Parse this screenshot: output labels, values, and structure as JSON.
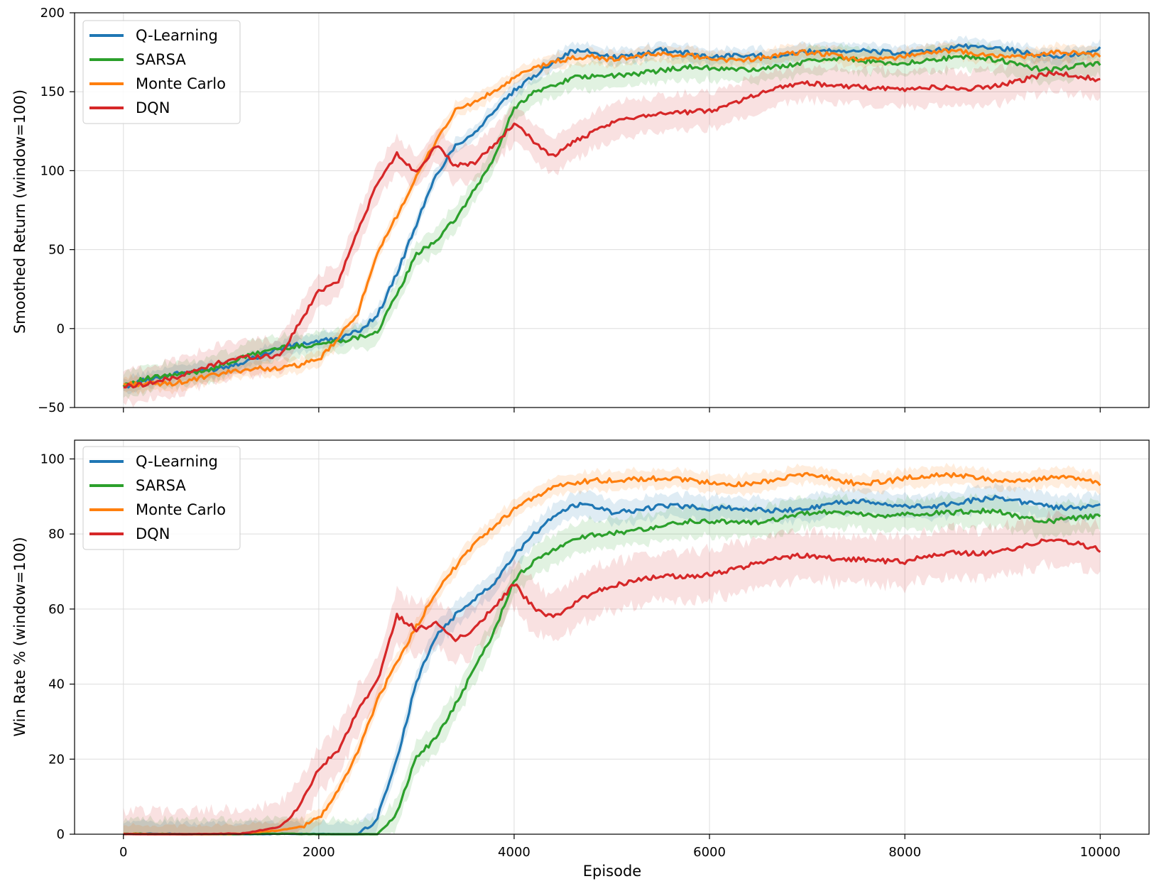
{
  "figure": {
    "xlabel": "Episode",
    "colors": {
      "Q-Learning": "#1f77b4",
      "SARSA": "#2ca02c",
      "Monte Carlo": "#ff7f0e",
      "DQN": "#d62728"
    }
  },
  "chart_data": [
    {
      "type": "line",
      "xlabel": "",
      "ylabel": "Smoothed Return (window=100)",
      "xlim": [
        -500,
        10500
      ],
      "ylim": [
        -50,
        200
      ],
      "xticks": [
        0,
        2000,
        4000,
        6000,
        8000,
        10000
      ],
      "xtick_labels_visible": false,
      "yticks": [
        -50,
        0,
        50,
        100,
        150,
        200
      ],
      "ytick_labels": [
        "−50",
        "0",
        "50",
        "100",
        "150",
        "200"
      ],
      "grid": true,
      "legend": "top-left",
      "shaded_band": "variability range per series",
      "x": [
        0,
        400,
        800,
        1200,
        1600,
        1800,
        2000,
        2200,
        2400,
        2600,
        2800,
        3000,
        3200,
        3400,
        3600,
        3800,
        4000,
        4200,
        4400,
        4600,
        4800,
        5000,
        5500,
        6000,
        6500,
        7000,
        7500,
        8000,
        8500,
        9000,
        9500,
        10000
      ],
      "series": [
        {
          "name": "Q-Learning",
          "values": [
            -37,
            -32,
            -26,
            -20,
            -14,
            -12,
            -9,
            -6,
            0,
            10,
            35,
            65,
            95,
            115,
            125,
            140,
            152,
            160,
            168,
            174,
            174,
            172,
            178,
            170,
            174,
            176,
            174,
            176,
            178,
            176,
            174,
            176
          ],
          "band_halfwidth": 6
        },
        {
          "name": "SARSA",
          "values": [
            -37,
            -31,
            -25,
            -19,
            -14,
            -12,
            -9,
            -6,
            -4,
            -2,
            20,
            45,
            55,
            70,
            90,
            110,
            140,
            148,
            152,
            158,
            160,
            162,
            163,
            164,
            166,
            168,
            170,
            170,
            170,
            170,
            165,
            166
          ],
          "band_halfwidth": 10
        },
        {
          "name": "Monte Carlo",
          "values": [
            -37,
            -34,
            -30,
            -28,
            -26,
            -22,
            -18,
            -5,
            10,
            45,
            70,
            95,
            120,
            140,
            145,
            150,
            157,
            163,
            168,
            172,
            174,
            172,
            172,
            172,
            172,
            173,
            172,
            173,
            174,
            174,
            174,
            172
          ],
          "band_halfwidth": 6
        },
        {
          "name": "DQN",
          "values": [
            -37,
            -31,
            -26,
            -20,
            -16,
            5,
            25,
            30,
            60,
            90,
            110,
            100,
            118,
            104,
            105,
            115,
            128,
            118,
            110,
            120,
            125,
            130,
            135,
            140,
            148,
            155,
            155,
            150,
            152,
            156,
            160,
            158
          ],
          "band_halfwidth": 14
        }
      ]
    },
    {
      "type": "line",
      "xlabel": "Episode",
      "ylabel": "Win Rate % (window=100)",
      "xlim": [
        -500,
        10500
      ],
      "ylim": [
        0,
        105
      ],
      "xticks": [
        0,
        2000,
        4000,
        6000,
        8000,
        10000
      ],
      "xtick_labels": [
        "0",
        "2000",
        "4000",
        "6000",
        "8000",
        "10000"
      ],
      "yticks": [
        0,
        20,
        40,
        60,
        80,
        100
      ],
      "ytick_labels": [
        "0",
        "20",
        "40",
        "60",
        "80",
        "100"
      ],
      "grid": true,
      "legend": "top-left",
      "shaded_band": "variability range per series",
      "x": [
        0,
        400,
        800,
        1200,
        1600,
        1800,
        2000,
        2200,
        2400,
        2600,
        2800,
        3000,
        3200,
        3400,
        3600,
        3800,
        4000,
        4200,
        4400,
        4600,
        4800,
        5000,
        5500,
        6000,
        6500,
        7000,
        7500,
        8000,
        8500,
        9000,
        9500,
        10000
      ],
      "series": [
        {
          "name": "Q-Learning",
          "values": [
            0,
            0,
            0,
            0,
            0,
            0,
            0,
            0,
            0,
            5,
            20,
            40,
            52,
            58,
            63,
            68,
            75,
            80,
            84,
            87,
            87,
            86,
            88,
            86,
            87,
            87,
            88,
            88,
            88,
            89,
            88,
            87
          ],
          "band_halfwidth": 4
        },
        {
          "name": "SARSA",
          "values": [
            0,
            0,
            0,
            0,
            0,
            0,
            0,
            0,
            0,
            0,
            5,
            20,
            25,
            35,
            45,
            55,
            68,
            72,
            75,
            78,
            80,
            81,
            82,
            83,
            84,
            85,
            85,
            86,
            85,
            86,
            84,
            84
          ],
          "band_halfwidth": 5
        },
        {
          "name": "Monte Carlo",
          "values": [
            0,
            0,
            0,
            0,
            1,
            2,
            5,
            12,
            22,
            35,
            45,
            55,
            65,
            72,
            78,
            82,
            86,
            89,
            92,
            94,
            95,
            95,
            94,
            94,
            94,
            95,
            94,
            95,
            95,
            95,
            95,
            93
          ],
          "band_halfwidth": 3
        },
        {
          "name": "DQN",
          "values": [
            0,
            0,
            0,
            0,
            2,
            8,
            18,
            22,
            32,
            40,
            58,
            55,
            57,
            52,
            55,
            60,
            66,
            60,
            58,
            62,
            65,
            66,
            68,
            70,
            72,
            74,
            74,
            72,
            75,
            76,
            78,
            76
          ],
          "band_halfwidth": 8
        }
      ]
    }
  ]
}
